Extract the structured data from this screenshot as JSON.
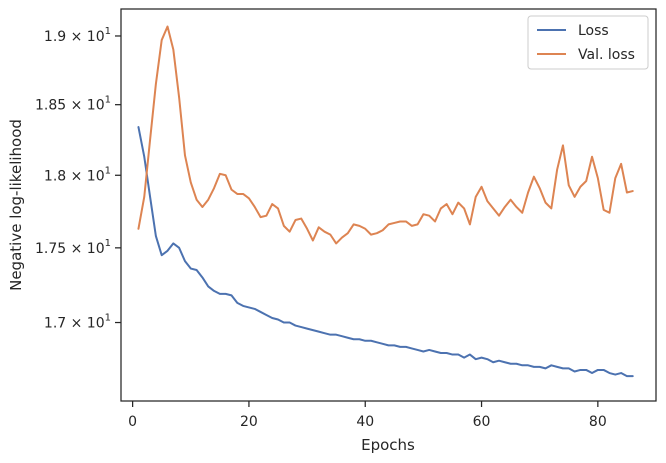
{
  "chart_data": {
    "type": "line",
    "title": "",
    "xlabel": "Epochs",
    "ylabel": "Negative log-likelihood",
    "yscale": "log",
    "xlim": [
      -2,
      90
    ],
    "ylim": [
      16.49,
      19.2
    ],
    "x_ticks": [
      0,
      20,
      40,
      60,
      80
    ],
    "x_tick_labels": [
      "0",
      "20",
      "40",
      "60",
      "80"
    ],
    "y_ticks": [
      17.0,
      17.5,
      18.0,
      18.5,
      19.0
    ],
    "y_tick_labels": [
      {
        "mantissa": "1.7",
        "exponent": "1"
      },
      {
        "mantissa": "1.75",
        "exponent": "1"
      },
      {
        "mantissa": "1.8",
        "exponent": "1"
      },
      {
        "mantissa": "1.85",
        "exponent": "1"
      },
      {
        "mantissa": "1.9",
        "exponent": "1"
      }
    ],
    "grid": false,
    "legend": {
      "position": "top-right"
    },
    "x": [
      1,
      2,
      3,
      4,
      5,
      6,
      7,
      8,
      9,
      10,
      11,
      12,
      13,
      14,
      15,
      16,
      17,
      18,
      19,
      20,
      21,
      22,
      23,
      24,
      25,
      26,
      27,
      28,
      29,
      30,
      31,
      32,
      33,
      34,
      35,
      36,
      37,
      38,
      39,
      40,
      41,
      42,
      43,
      44,
      45,
      46,
      47,
      48,
      49,
      50,
      51,
      52,
      53,
      54,
      55,
      56,
      57,
      58,
      59,
      60,
      61,
      62,
      63,
      64,
      65,
      66,
      67,
      68,
      69,
      70,
      71,
      72,
      73,
      74,
      75,
      76,
      77,
      78,
      79,
      80,
      81,
      82,
      83,
      84,
      85,
      86
    ],
    "series": [
      {
        "name": "Loss",
        "color": "#4c72b0",
        "values": [
          18.34,
          18.13,
          17.85,
          17.58,
          17.45,
          17.48,
          17.53,
          17.5,
          17.41,
          17.36,
          17.35,
          17.3,
          17.24,
          17.21,
          17.19,
          17.19,
          17.18,
          17.13,
          17.11,
          17.1,
          17.09,
          17.07,
          17.05,
          17.03,
          17.02,
          17.0,
          17.0,
          16.98,
          16.97,
          16.96,
          16.95,
          16.94,
          16.93,
          16.92,
          16.92,
          16.91,
          16.9,
          16.89,
          16.89,
          16.88,
          16.88,
          16.87,
          16.86,
          16.85,
          16.85,
          16.84,
          16.84,
          16.83,
          16.82,
          16.81,
          16.82,
          16.81,
          16.8,
          16.8,
          16.79,
          16.79,
          16.77,
          16.79,
          16.76,
          16.77,
          16.76,
          16.74,
          16.75,
          16.74,
          16.73,
          16.73,
          16.72,
          16.72,
          16.71,
          16.71,
          16.7,
          16.72,
          16.71,
          16.7,
          16.7,
          16.68,
          16.69,
          16.69,
          16.67,
          16.69,
          16.69,
          16.67,
          16.66,
          16.67,
          16.65,
          16.65
        ]
      },
      {
        "name": "Val. loss",
        "color": "#dd8452",
        "values": [
          17.63,
          17.85,
          18.25,
          18.65,
          18.97,
          19.07,
          18.9,
          18.55,
          18.14,
          17.95,
          17.83,
          17.78,
          17.83,
          17.91,
          18.01,
          18.0,
          17.9,
          17.87,
          17.87,
          17.84,
          17.78,
          17.71,
          17.72,
          17.8,
          17.77,
          17.65,
          17.61,
          17.69,
          17.7,
          17.63,
          17.55,
          17.64,
          17.61,
          17.59,
          17.53,
          17.57,
          17.6,
          17.66,
          17.65,
          17.63,
          17.59,
          17.6,
          17.62,
          17.66,
          17.67,
          17.68,
          17.68,
          17.65,
          17.66,
          17.73,
          17.72,
          17.68,
          17.77,
          17.8,
          17.73,
          17.81,
          17.77,
          17.66,
          17.85,
          17.92,
          17.82,
          17.77,
          17.72,
          17.78,
          17.83,
          17.78,
          17.74,
          17.88,
          17.99,
          17.91,
          17.81,
          17.77,
          18.04,
          18.21,
          17.93,
          17.85,
          17.92,
          17.96,
          18.13,
          17.98,
          17.76,
          17.74,
          17.98,
          18.08,
          17.88,
          17.89
        ]
      }
    ]
  }
}
